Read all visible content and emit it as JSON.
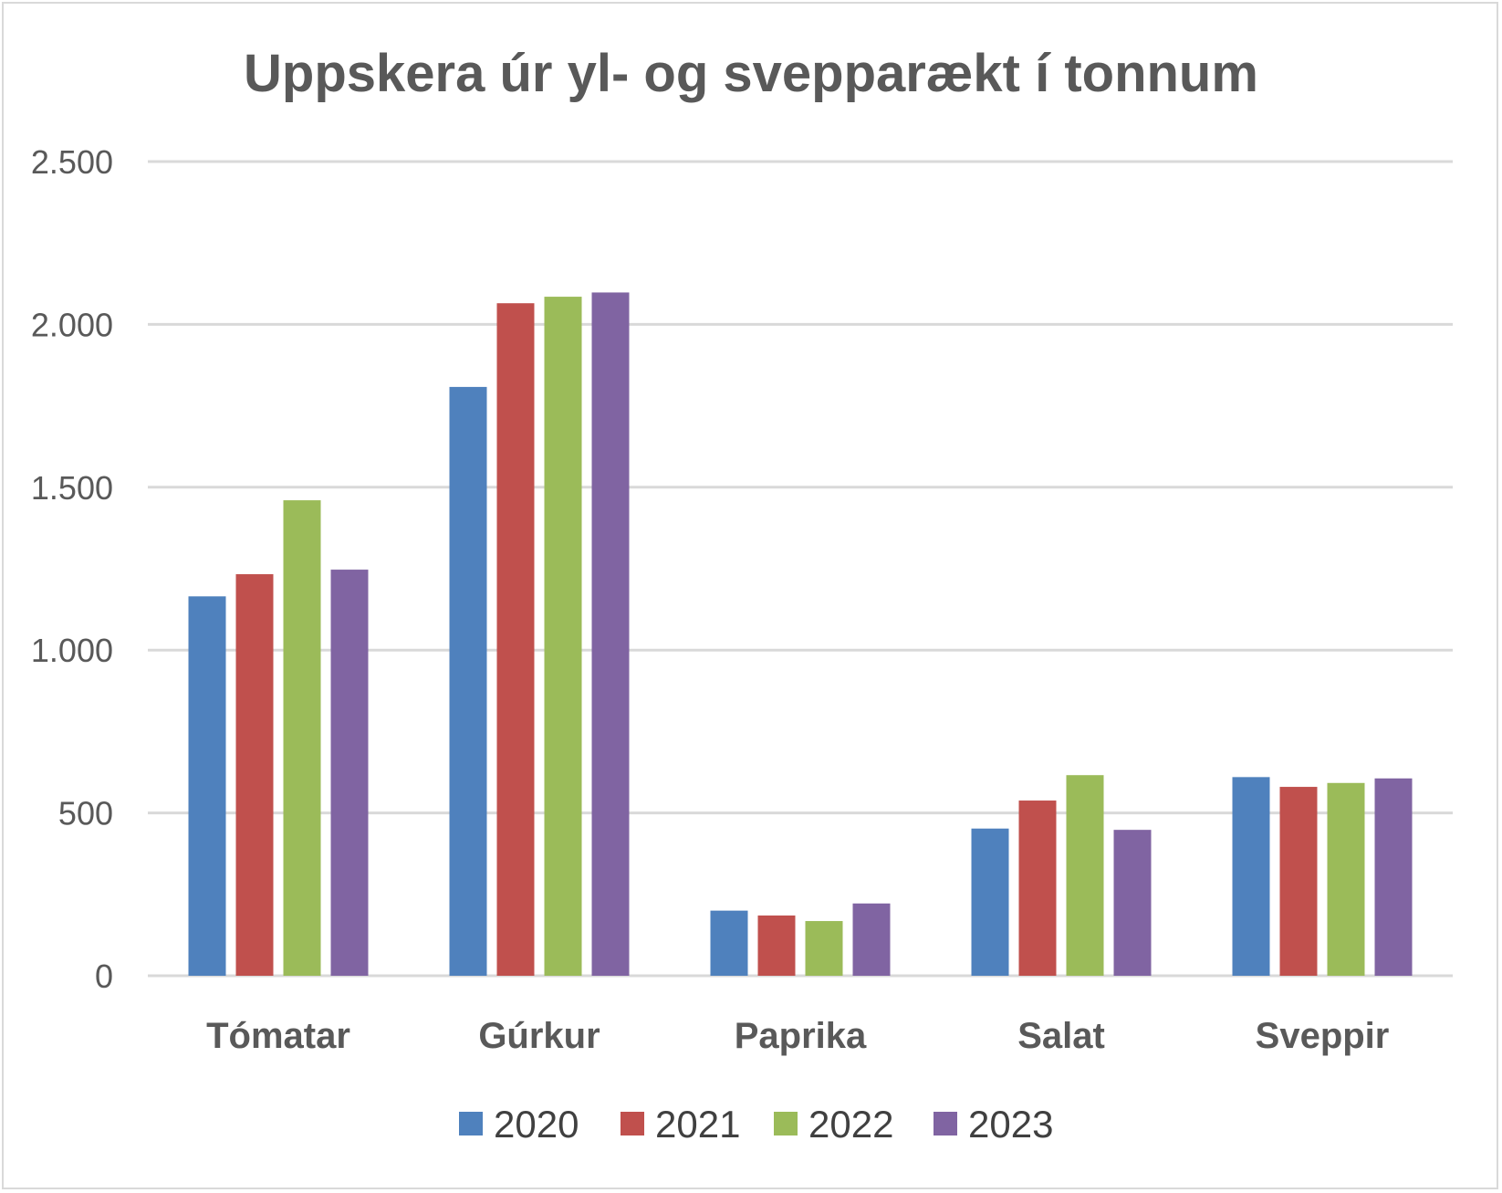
{
  "chart_data": {
    "type": "bar",
    "title": "Uppskera úr yl- og svepparækt í tonnum",
    "xlabel": "",
    "ylabel": "",
    "categories": [
      "Tómatar",
      "Gúrkur",
      "Paprika",
      "Salat",
      "Sveppir"
    ],
    "series": [
      {
        "name": "2020",
        "color": "#4f81bd",
        "values": [
          1165,
          1808,
          200,
          452,
          610
        ]
      },
      {
        "name": "2021",
        "color": "#c0504d",
        "values": [
          1233,
          2065,
          185,
          538,
          580
        ]
      },
      {
        "name": "2022",
        "color": "#9bbb59",
        "values": [
          1460,
          2085,
          168,
          616,
          592
        ]
      },
      {
        "name": "2023",
        "color": "#8064a2",
        "values": [
          1247,
          2098,
          222,
          448,
          606
        ]
      }
    ],
    "ylim": [
      0,
      2500
    ],
    "yticks": [
      {
        "value": 0,
        "label": "0"
      },
      {
        "value": 500,
        "label": "500"
      },
      {
        "value": 1000,
        "label": "1.000"
      },
      {
        "value": 1500,
        "label": "1.500"
      },
      {
        "value": 2000,
        "label": "2.000"
      },
      {
        "value": 2500,
        "label": "2.500"
      }
    ],
    "grid": true,
    "legend": "bottom"
  }
}
